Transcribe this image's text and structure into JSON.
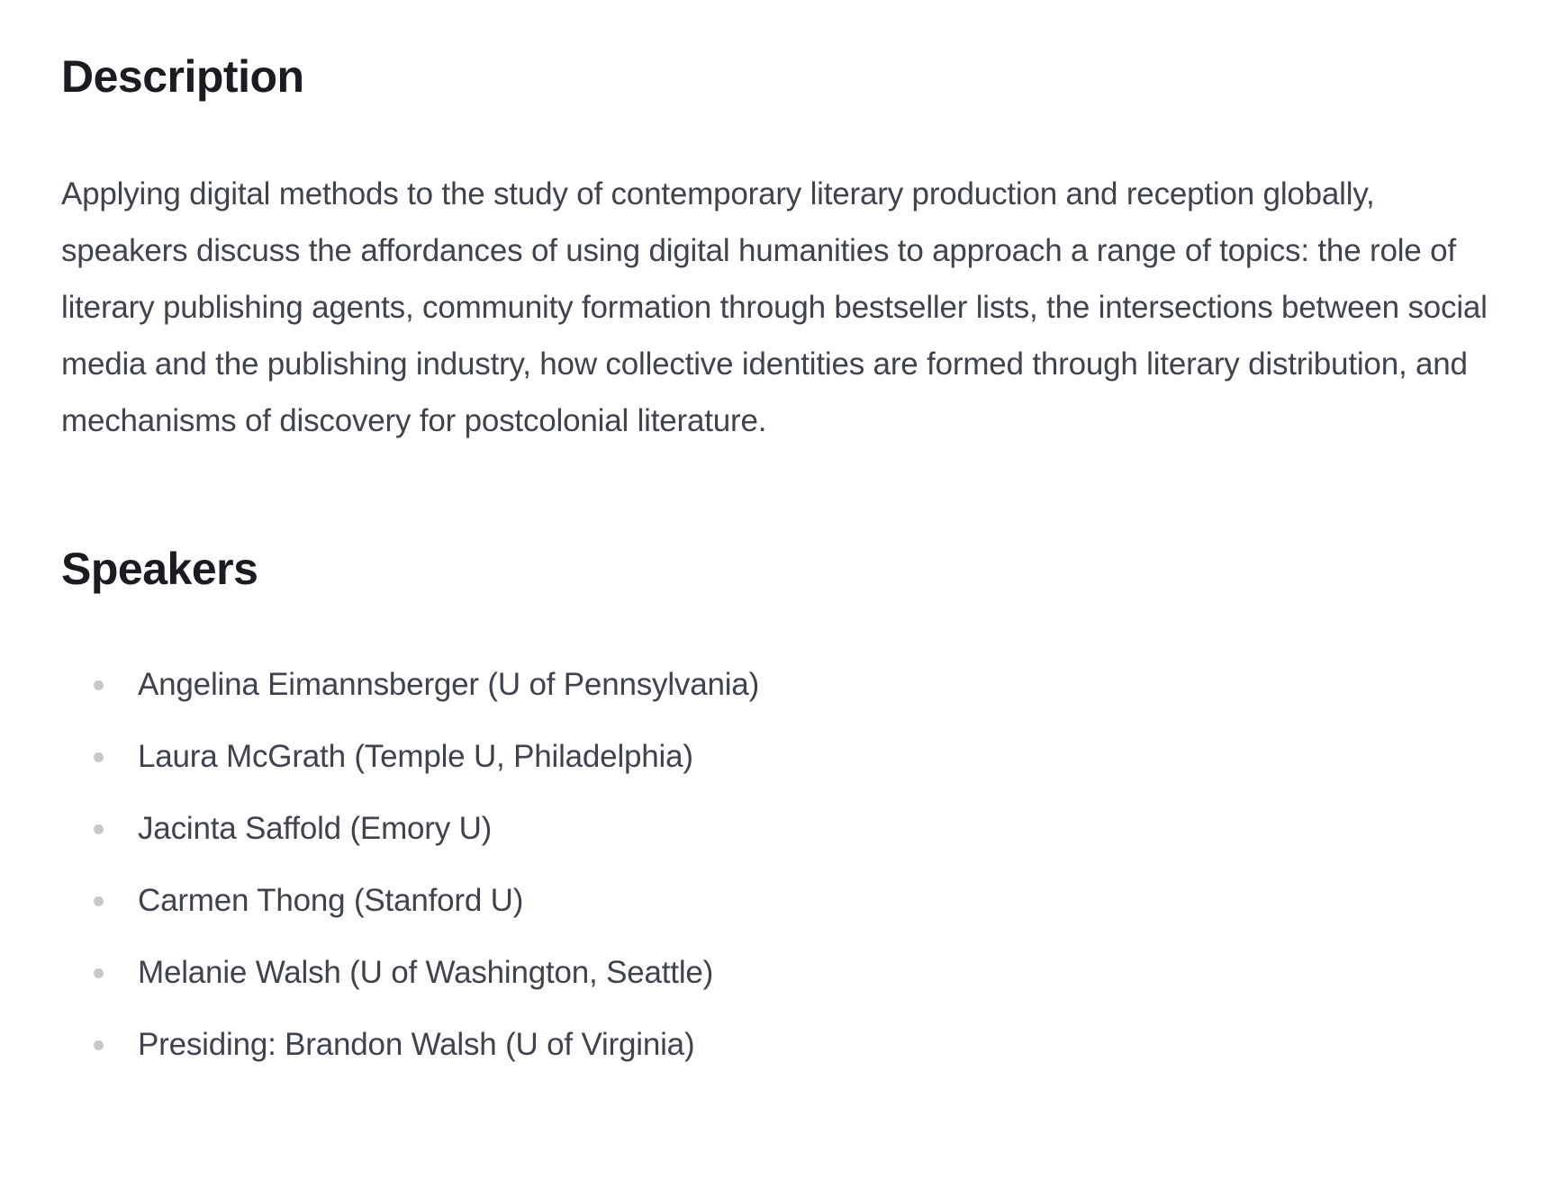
{
  "description": {
    "heading": "Description",
    "body": "Applying digital methods to the study of contemporary literary production and reception globally, speakers discuss the affordances of using digital humanities to approach a range of topics: the role of literary publishing agents, community formation through bestseller lists, the intersections between social media and the publishing industry, how collective identities are formed through literary distribution, and mechanisms of discovery for postcolonial literature."
  },
  "speakers": {
    "heading": "Speakers",
    "items": [
      "Angelina Eimannsberger (U of Pennsylvania)",
      "Laura McGrath (Temple U, Philadelphia)",
      "Jacinta Saffold (Emory U)",
      "Carmen Thong (Stanford U)",
      "Melanie Walsh (U of Washington, Seattle)",
      "Presiding: Brandon Walsh (U of Virginia)"
    ]
  },
  "colors": {
    "heading_text": "#1a1c21",
    "body_text": "#3f434c",
    "bullet": "#c7c8cb",
    "background": "#ffffff"
  }
}
